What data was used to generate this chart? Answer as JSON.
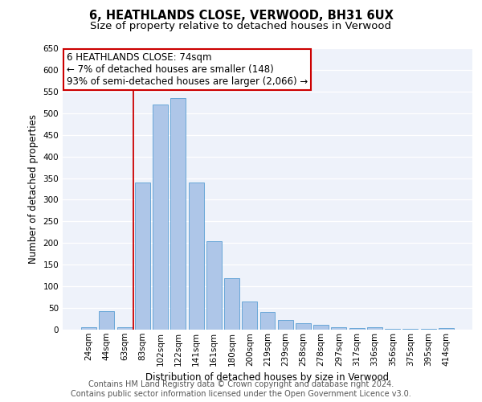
{
  "title": "6, HEATHLANDS CLOSE, VERWOOD, BH31 6UX",
  "subtitle": "Size of property relative to detached houses in Verwood",
  "xlabel": "Distribution of detached houses by size in Verwood",
  "ylabel": "Number of detached properties",
  "footer_line1": "Contains HM Land Registry data © Crown copyright and database right 2024.",
  "footer_line2": "Contains public sector information licensed under the Open Government Licence v3.0.",
  "categories": [
    "24sqm",
    "44sqm",
    "63sqm",
    "83sqm",
    "102sqm",
    "122sqm",
    "141sqm",
    "161sqm",
    "180sqm",
    "200sqm",
    "219sqm",
    "239sqm",
    "258sqm",
    "278sqm",
    "297sqm",
    "317sqm",
    "336sqm",
    "356sqm",
    "375sqm",
    "395sqm",
    "414sqm"
  ],
  "values": [
    5,
    42,
    5,
    340,
    520,
    535,
    340,
    205,
    118,
    65,
    40,
    22,
    15,
    12,
    5,
    3,
    5,
    1,
    2,
    1,
    4
  ],
  "bar_color": "#aec6e8",
  "bar_edge_color": "#5a9fd4",
  "annotation_line1": "6 HEATHLANDS CLOSE: 74sqm",
  "annotation_line2": "← 7% of detached houses are smaller (148)",
  "annotation_line3": "93% of semi-detached houses are larger (2,066) →",
  "annotation_box_edge_color": "#cc0000",
  "vline_color": "#cc0000",
  "vline_x": 2.5,
  "ylim": [
    0,
    650
  ],
  "yticks": [
    0,
    50,
    100,
    150,
    200,
    250,
    300,
    350,
    400,
    450,
    500,
    550,
    600,
    650
  ],
  "bg_color": "#eef2fa",
  "grid_color": "#ffffff",
  "title_fontsize": 10.5,
  "subtitle_fontsize": 9.5,
  "axis_label_fontsize": 8.5,
  "tick_fontsize": 7.5,
  "annotation_fontsize": 8.5,
  "footer_fontsize": 7
}
